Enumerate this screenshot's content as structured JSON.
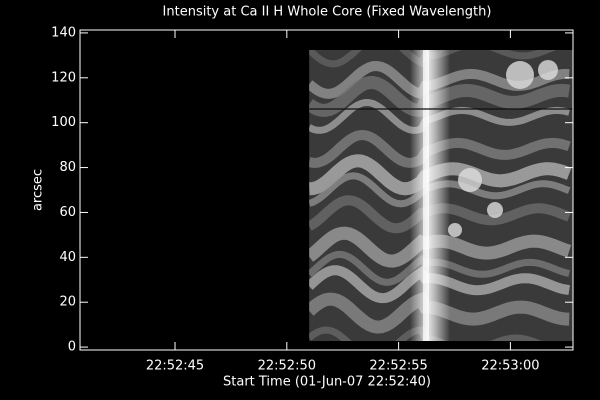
{
  "chart_data": {
    "type": "image",
    "title": "Intensity at Ca II H Whole Core (Fixed Wavelength)",
    "xlabel": "Start Time (01-Jun-07 22:52:40)",
    "ylabel": "arcsec",
    "xlim": [
      0.75,
      22.8
    ],
    "xticks": [
      {
        "value": 5,
        "label": "22:52:45"
      },
      {
        "value": 10,
        "label": "22:52:50"
      },
      {
        "value": 15,
        "label": "22:52:55"
      },
      {
        "value": 20,
        "label": "22:53:00"
      }
    ],
    "ylim": [
      -1.3,
      141.3
    ],
    "yticks": [
      0,
      20,
      40,
      60,
      80,
      100,
      120,
      140
    ],
    "extent": {
      "x": [
        11.0,
        22.8
      ],
      "y": [
        2.7,
        132.4
      ]
    },
    "hline": 106.1
  }
}
